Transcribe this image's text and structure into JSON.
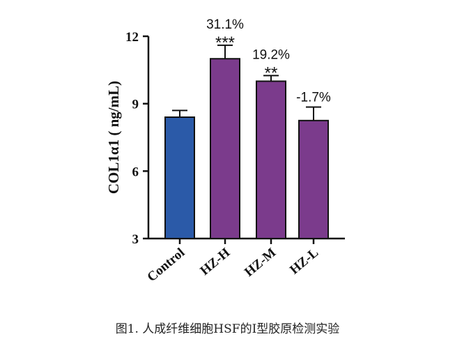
{
  "chart_data": {
    "type": "bar",
    "ylabel": "COL1α1 ( ng/mL)",
    "ylim": [
      3,
      12
    ],
    "yticks": [
      3,
      6,
      9,
      12
    ],
    "categories": [
      "Control",
      "HZ-H",
      "HZ-M",
      "HZ-L"
    ],
    "values": [
      8.4,
      11.0,
      10.0,
      8.25
    ],
    "errors": [
      0.3,
      0.6,
      0.25,
      0.6
    ],
    "bar_colors": [
      "#2b5aa8",
      "#7b3b8c",
      "#7b3b8c",
      "#7b3b8c"
    ],
    "annotations": [
      {
        "category": "HZ-H",
        "percent": "31.1%",
        "stars": "***"
      },
      {
        "category": "HZ-M",
        "percent": "19.2%",
        "stars": "**"
      },
      {
        "category": "HZ-L",
        "percent": "-1.7%",
        "stars": ""
      }
    ],
    "grid": false,
    "legend": "none"
  },
  "caption": "图1. 人成纤维细胞HSF的I型胶原检测实验"
}
